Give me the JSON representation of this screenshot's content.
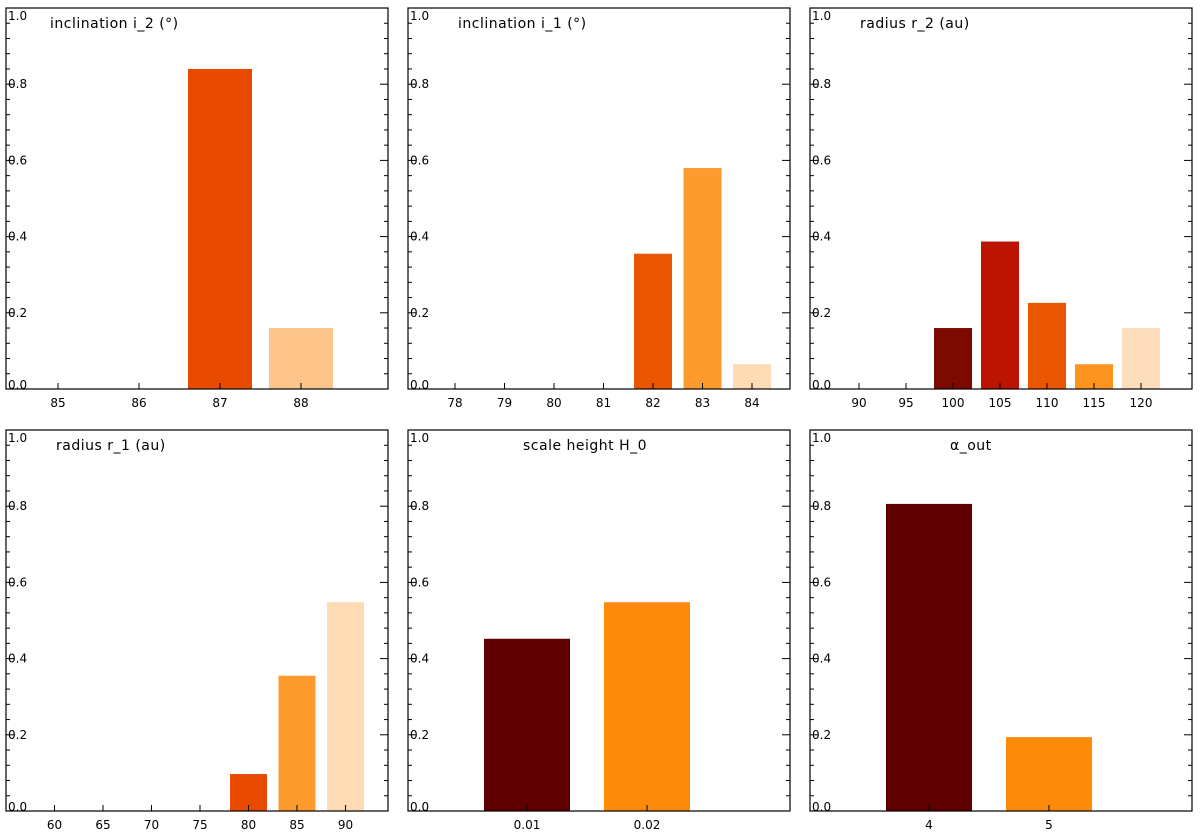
{
  "chart_data": [
    {
      "type": "bar",
      "title": "inclination i_2 (°)",
      "categories": [
        "85",
        "86",
        "87",
        "88"
      ],
      "values": [
        0.0,
        0.0,
        0.84,
        0.16
      ],
      "colors": [
        "#ffffff",
        "#ffffff",
        "#e84a00",
        "#fdc58a"
      ],
      "ylim": [
        0,
        1.0
      ],
      "yticks": [
        "0.0",
        "0.2",
        "0.4",
        "0.6",
        "0.8",
        "1.0"
      ],
      "xlabel": "",
      "ylabel": ""
    },
    {
      "type": "bar",
      "title": "inclination i_1 (°)",
      "categories": [
        "78",
        "79",
        "80",
        "81",
        "82",
        "83",
        "84"
      ],
      "values": [
        0.0,
        0.0,
        0.0,
        0.0,
        0.355,
        0.58,
        0.065
      ],
      "colors": [
        "#ffffff",
        "#ffffff",
        "#ffffff",
        "#ffffff",
        "#ea5500",
        "#fd9b2e",
        "#fedab5"
      ],
      "ylim": [
        0,
        1.0
      ],
      "yticks": [
        "0.0",
        "0.2",
        "0.4",
        "0.6",
        "0.8",
        "1.0"
      ],
      "xlabel": "",
      "ylabel": ""
    },
    {
      "type": "bar",
      "title": "radius r_2 (au)",
      "categories": [
        "90",
        "95",
        "100",
        "105",
        "110",
        "115",
        "120"
      ],
      "values": [
        0.0,
        0.0,
        0.16,
        0.387,
        0.226,
        0.065,
        0.16
      ],
      "colors": [
        "#ffffff",
        "#ffffff",
        "#7d0a00",
        "#bb1400",
        "#ea5500",
        "#fd9420",
        "#fedebd"
      ],
      "ylim": [
        0,
        1.0
      ],
      "yticks": [
        "0.0",
        "0.2",
        "0.4",
        "0.6",
        "0.8",
        "1.0"
      ],
      "xlabel": "",
      "ylabel": ""
    },
    {
      "type": "bar",
      "title": "radius r_1 (au)",
      "categories": [
        "60",
        "65",
        "70",
        "75",
        "80",
        "85",
        "90"
      ],
      "values": [
        0.0,
        0.0,
        0.0,
        0.0,
        0.097,
        0.355,
        0.548
      ],
      "colors": [
        "#ffffff",
        "#ffffff",
        "#ffffff",
        "#ffffff",
        "#e84a00",
        "#fd9b2e",
        "#fedab5"
      ],
      "ylim": [
        0,
        1.0
      ],
      "yticks": [
        "0.0",
        "0.2",
        "0.4",
        "0.6",
        "0.8",
        "1.0"
      ],
      "xlabel": "",
      "ylabel": ""
    },
    {
      "type": "bar",
      "title": "scale height H_0",
      "categories": [
        "0.01",
        "0.02"
      ],
      "values": [
        0.452,
        0.548
      ],
      "colors": [
        "#5e0000",
        "#fd8a08"
      ],
      "ylim": [
        0,
        1.0
      ],
      "yticks": [
        "0.0",
        "0.2",
        "0.4",
        "0.6",
        "0.8",
        "1.0"
      ],
      "xlabel": "",
      "ylabel": ""
    },
    {
      "type": "bar",
      "title": "α_out",
      "categories": [
        "4",
        "5"
      ],
      "values": [
        0.806,
        0.194
      ],
      "colors": [
        "#5e0000",
        "#fd8a08"
      ],
      "ylim": [
        0,
        1.0
      ],
      "yticks": [
        "0.0",
        "0.2",
        "0.4",
        "0.6",
        "0.8",
        "1.0"
      ],
      "xlabel": "",
      "ylabel": ""
    }
  ]
}
